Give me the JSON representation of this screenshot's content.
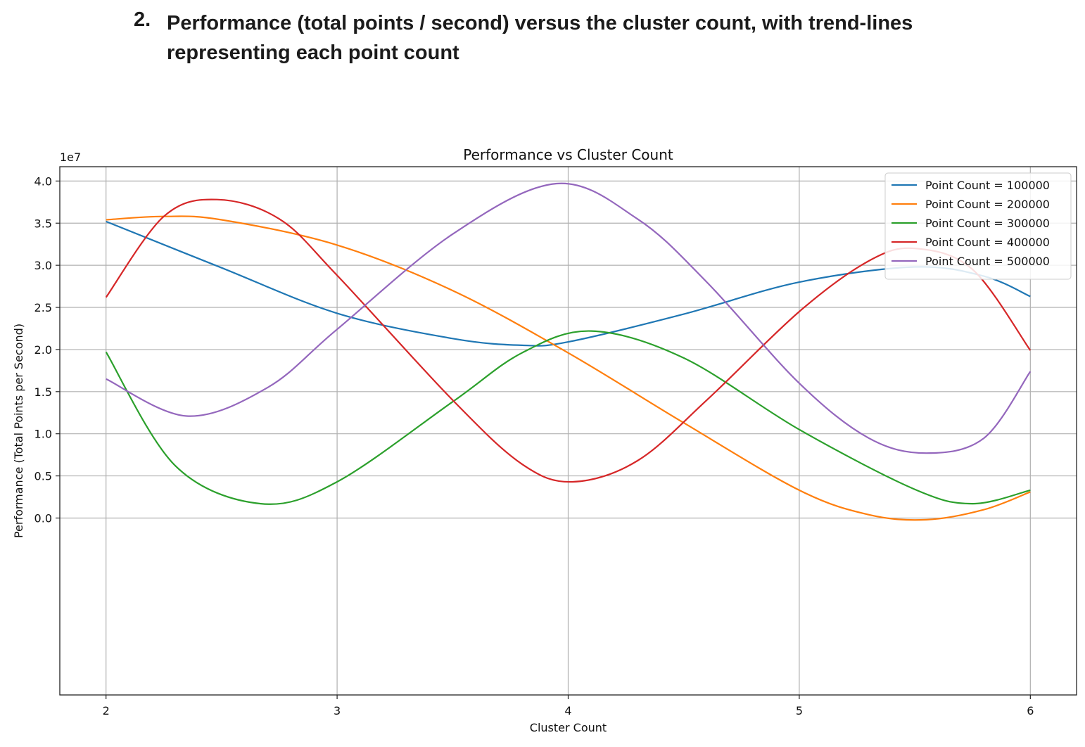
{
  "heading": {
    "number": "2.",
    "text": "Performance (total points / second) versus the cluster count, with trend-lines representing each point count"
  },
  "chart_data": {
    "type": "line",
    "title": "Performance vs Cluster Count",
    "xlabel": "Cluster Count",
    "ylabel": "Performance (Total Points per Second)",
    "y_offset_label": "1e7",
    "xlim": [
      1.8,
      6.2
    ],
    "ylim": [
      -2.1,
      4.17
    ],
    "x_ticks": [
      2,
      3,
      4,
      5,
      6
    ],
    "x_tick_labels": [
      "2",
      "3",
      "4",
      "5",
      "6"
    ],
    "y_ticks": [
      0,
      0.5,
      1.0,
      1.5,
      2.0,
      2.5,
      3.0,
      3.5,
      4.0
    ],
    "y_tick_labels": [
      "0.0",
      "0.5",
      "1.0",
      "1.5",
      "2.0",
      "2.5",
      "3.0",
      "3.5",
      "4.0"
    ],
    "grid": true,
    "legend_position": "top-right",
    "series": [
      {
        "name": "Point Count = 100000",
        "color": "#1f77b4",
        "x": [
          2,
          2.5,
          3,
          3.5,
          3.8,
          4,
          4.5,
          5,
          5.5,
          5.8,
          6
        ],
        "y": [
          3.52,
          2.97,
          2.43,
          2.13,
          2.05,
          2.09,
          2.42,
          2.8,
          2.98,
          2.87,
          2.63
        ]
      },
      {
        "name": "Point Count = 200000",
        "color": "#ff7f0e",
        "x": [
          2,
          2.25,
          2.5,
          3,
          3.5,
          4,
          4.5,
          5,
          5.3,
          5.55,
          5.8,
          6
        ],
        "y": [
          3.54,
          3.58,
          3.54,
          3.24,
          2.7,
          1.96,
          1.13,
          0.33,
          0.04,
          -0.02,
          0.1,
          0.31
        ]
      },
      {
        "name": "Point Count = 300000",
        "color": "#2ca02c",
        "x": [
          2,
          2.3,
          2.67,
          3,
          3.5,
          3.8,
          4.1,
          4.5,
          5,
          5.5,
          5.75,
          6
        ],
        "y": [
          1.97,
          0.62,
          0.17,
          0.43,
          1.38,
          1.96,
          2.22,
          1.9,
          1.05,
          0.34,
          0.17,
          0.33
        ]
      },
      {
        "name": "Point Count = 400000",
        "color": "#d62728",
        "x": [
          2,
          2.25,
          2.48,
          2.75,
          3,
          3.5,
          3.8,
          4.02,
          4.3,
          4.6,
          5,
          5.3,
          5.5,
          5.75,
          6
        ],
        "y": [
          2.62,
          3.58,
          3.78,
          3.55,
          2.88,
          1.4,
          0.64,
          0.43,
          0.68,
          1.4,
          2.45,
          3.05,
          3.2,
          2.95,
          1.99
        ]
      },
      {
        "name": "Point Count = 500000",
        "color": "#9467bd",
        "x": [
          2,
          2.35,
          2.7,
          3,
          3.5,
          3.95,
          4.3,
          4.6,
          5,
          5.3,
          5.55,
          5.8,
          6
        ],
        "y": [
          1.65,
          1.21,
          1.55,
          2.24,
          3.37,
          3.97,
          3.55,
          2.8,
          1.6,
          0.95,
          0.77,
          0.95,
          1.74
        ]
      }
    ]
  }
}
